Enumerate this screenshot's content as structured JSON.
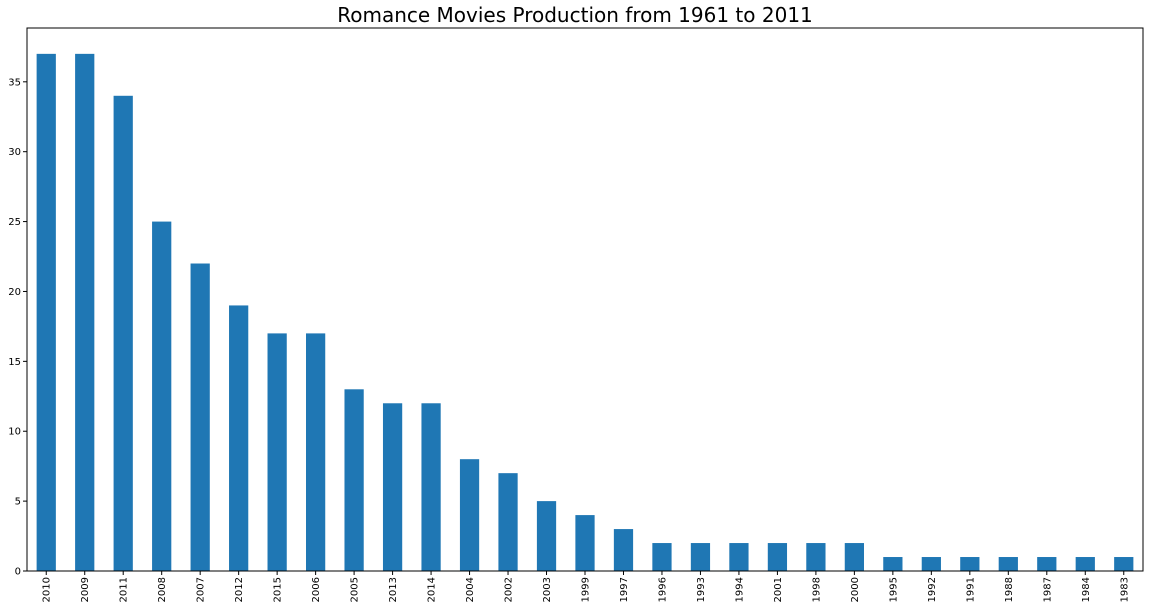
{
  "chart_data": {
    "type": "bar",
    "title": "Romance Movies Production from 1961 to 2011",
    "xlabel": "",
    "ylabel": "",
    "categories": [
      "2010",
      "2009",
      "2011",
      "2008",
      "2007",
      "2012",
      "2015",
      "2006",
      "2005",
      "2013",
      "2014",
      "2004",
      "2002",
      "2003",
      "1999",
      "1997",
      "1996",
      "1993",
      "1994",
      "2001",
      "1998",
      "2000",
      "1995",
      "1992",
      "1991",
      "1988",
      "1987",
      "1984",
      "1983"
    ],
    "values": [
      37,
      37,
      34,
      25,
      22,
      19,
      17,
      17,
      13,
      12,
      12,
      8,
      7,
      5,
      4,
      3,
      2,
      2,
      2,
      2,
      2,
      2,
      1,
      1,
      1,
      1,
      1,
      1,
      1
    ],
    "ylim": [
      0,
      38.85
    ],
    "yticks": [
      0,
      5,
      10,
      15,
      20,
      25,
      30,
      35
    ],
    "grid": false,
    "bar_color": "#1f77b4"
  }
}
